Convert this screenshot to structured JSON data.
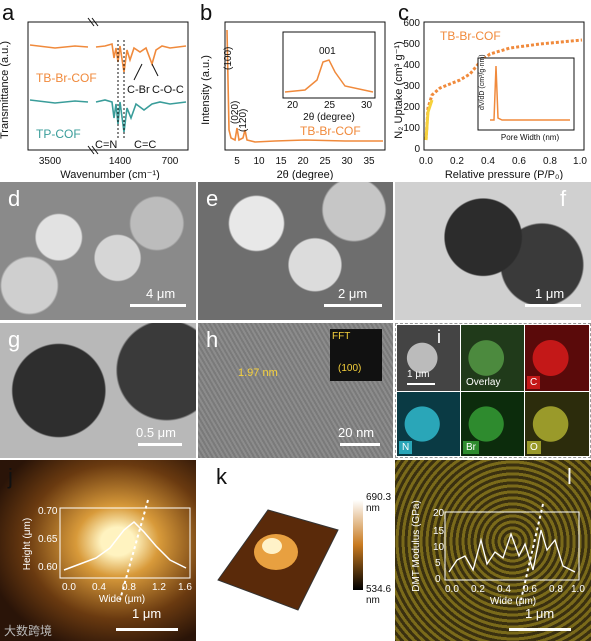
{
  "panels": {
    "a": {
      "label": "a",
      "ylabel": "Transmittance (a.u.)",
      "xlabel": "Wavenumber (cm⁻¹)",
      "ticks": [
        "3500",
        "1400",
        "700"
      ],
      "series1": "TB-Br-COF",
      "series2": "TP-COF",
      "ann": [
        "C-Br",
        "C-O-C",
        "C=N",
        "C=C"
      ],
      "colors": {
        "tbbr": "#f08a3c",
        "tp": "#3a9d9a"
      }
    },
    "b": {
      "label": "b",
      "ylabel": "Intensity (a.u.)",
      "xlabel": "2θ (degree)",
      "ticks": [
        "5",
        "10",
        "15",
        "20",
        "25",
        "30",
        "35"
      ],
      "series": "TB-Br-COF",
      "peaks": [
        "(100)",
        "(020)",
        "(120)"
      ],
      "inset": {
        "title": "001",
        "xlabel": "2θ (degree)",
        "ticks": [
          "20",
          "25",
          "30"
        ]
      }
    },
    "c": {
      "label": "c",
      "ylabel": "N₂ Uptake (cm³ g⁻¹)",
      "xlabel": "Relative pressure (P/P₀)",
      "xticks": [
        "0.0",
        "0.2",
        "0.4",
        "0.6",
        "0.8",
        "1.0"
      ],
      "yticks": [
        "0",
        "100",
        "200",
        "300",
        "400",
        "500",
        "600"
      ],
      "series": "TB-Br-COF",
      "inset": {
        "ylabel": "dV/dD (cm³/g·nm)",
        "xlabel": "Pore Width (nm)",
        "xticks": [
          "0",
          "2",
          "4",
          "6",
          "8",
          "10"
        ],
        "yticks": [
          "0",
          "1",
          "2",
          "3",
          "4"
        ]
      }
    },
    "d": {
      "label": "d",
      "scale": "4 μm"
    },
    "e": {
      "label": "e",
      "scale": "2 μm"
    },
    "f": {
      "label": "f",
      "scale": "1 μm"
    },
    "g": {
      "label": "g",
      "scale": "0.5 μm"
    },
    "h": {
      "label": "h",
      "scale": "20 nm",
      "dspace": "1.97 nm",
      "fft": "FFT",
      "fft_idx": "(100)"
    },
    "i": {
      "label": "i",
      "scale": "1 μm",
      "tiles": [
        "Overlay",
        "C",
        "N",
        "Br",
        "O"
      ]
    },
    "j": {
      "label": "j",
      "scale": "1 μm",
      "ylabel": "Height (μm)",
      "xlabel": "Wide (μm)",
      "xticks": [
        "0.0",
        "0.4",
        "0.8",
        "1.2",
        "1.6"
      ],
      "yticks": [
        "0.60",
        "0.65",
        "0.70"
      ]
    },
    "k": {
      "label": "k",
      "max": "690.3 nm",
      "min": "534.6 nm"
    },
    "l": {
      "label": "l",
      "scale": "1 μm",
      "ylabel": "DMT Modulus (GPa)",
      "xlabel": "Wide (μm)",
      "xticks": [
        "0.0",
        "0.2",
        "0.4",
        "0.6",
        "0.8",
        "1.0"
      ],
      "yticks": [
        "0",
        "5",
        "10",
        "15",
        "20"
      ]
    }
  },
  "watermark": "大数跨境"
}
